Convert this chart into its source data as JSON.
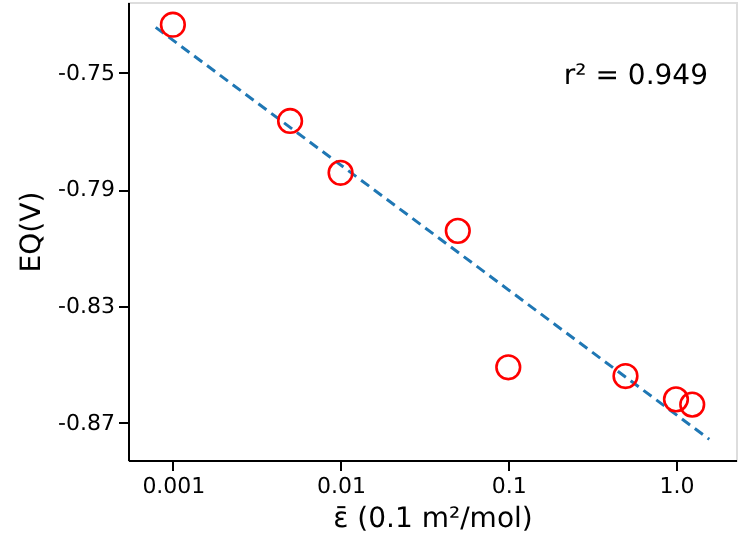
{
  "chart_data": {
    "type": "scatter",
    "xlabel": "ε̄ (0.1 m²/mol)",
    "ylabel": "EQ(V)",
    "annotations": [
      "r² = 0.949"
    ],
    "log": "x",
    "xlim": [
      0.00054,
      2.28
    ],
    "ylim": [
      -0.8828,
      -0.7257
    ],
    "xticks": [
      0.001,
      0.01,
      0.1,
      {
        "value": 1,
        "label": "1.0"
      }
    ],
    "yticks": [
      -0.75,
      -0.79,
      -0.83,
      -0.87
    ],
    "grid": false,
    "legend": false,
    "marker": "circle",
    "series": [
      {
        "type": "scatter",
        "color": "#ff0000",
        "x": [
          0.001,
          0.005,
          0.01,
          0.05,
          0.1,
          0.5,
          1.0,
          1.25
        ],
        "values": [
          -0.7335,
          -0.7665,
          -0.7843,
          -0.8042,
          -0.851,
          -0.854,
          -0.862,
          -0.8638
        ]
      },
      {
        "type": "line",
        "color": "#1f77b4",
        "line_style": "dashed",
        "marker": "none",
        "x": [
          0.00079,
          1.58
        ],
        "values": [
          -0.7344,
          -0.8757
        ]
      }
    ]
  }
}
